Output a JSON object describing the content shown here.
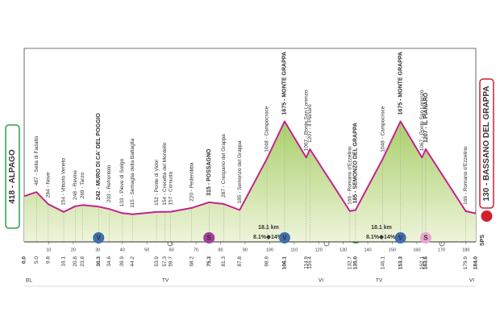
{
  "chart_data": {
    "type": "area",
    "x": [
      0,
      5,
      9.8,
      16.1,
      20.8,
      23.8,
      30.3,
      34.6,
      39.9,
      44.2,
      53.9,
      57.3,
      59.7,
      68.2,
      75.3,
      81.3,
      87.8,
      98.9,
      106.1,
      114.9,
      116.4,
      132.7,
      135,
      146.1,
      153.3,
      162.1,
      163.6,
      179.9,
      184
    ],
    "x_labels": [
      "0.0",
      "5.0",
      "9.8",
      "16.1",
      "20.8",
      "23.8",
      "30.3",
      "34.6",
      "39.9",
      "44.2",
      "53.9",
      "57.3",
      "59.7",
      "68.2",
      "75.3",
      "81.3",
      "87.8",
      "98.9",
      "106.1",
      "114.9",
      "116.4",
      "132.7",
      "135.0",
      "146.1",
      "153.3",
      "162.1",
      "163.6",
      "179.9",
      "184.0"
    ],
    "values": [
      418,
      487,
      284,
      154,
      248,
      269,
      242,
      203,
      133,
      115,
      152,
      154,
      157,
      220,
      315,
      287,
      185,
      1048,
      1675,
      1067,
      1207,
      166,
      185,
      1048,
      1675,
      1067,
      1207,
      166,
      130
    ],
    "point_labels": [
      "418 - ALPAGO",
      "487 - Sella di Fadalto",
      "284 - Nove",
      "154 - Vittorio Veneto",
      "248 - Revine",
      "269 - Tarzo",
      "242 - MURO DI CA' DEL POGGIO",
      "203 - Refrontolo",
      "133 - Pieve di Soligo",
      "115 - Semaglia della Battaglia",
      "152 - Ponte di Vidor",
      "154 - Crocetta del Montello",
      "157 - Cornuda",
      "220 - Pederobba",
      "315 - POSSAGNO",
      "287 - Crespano del Grappa",
      "185 - Semonzo del Grappa",
      "1048 - Campocroce",
      "1675 - MONTE GRAPPA",
      "1067 - Ponte San Lorenzo",
      "1207 - Il Pianaro",
      "166 - Romano d'Ezzelino",
      "185 - SEMONZO DEL GRAPPA",
      "1048 - Campocroce",
      "1675 - MONTE GRAPPA",
      "1067 - Ponte San Lorenzo",
      "1207 - IL PIANARO",
      "166 - Romano d'Ezzelino",
      "130 - BASSANO DEL GRAPPA"
    ],
    "bold_points": [
      0,
      6,
      14,
      18,
      22,
      24,
      26,
      28
    ],
    "xlim": [
      0,
      184
    ],
    "ylim": [
      -350,
      2900
    ],
    "xticks": [
      10,
      20,
      30,
      40,
      50,
      60,
      70,
      80,
      90,
      100,
      110,
      120,
      130,
      140,
      150,
      160,
      170,
      180
    ],
    "line_color": "#c2248c",
    "fill_color": "#c7df95",
    "climbs": [
      {
        "length": "18.1 km",
        "gradient": "8.1%",
        "max_gradient": "14%"
      },
      {
        "length": "18.1 km",
        "gradient": "8.1%",
        "max_gradient": "14%"
      }
    ],
    "markers": [
      {
        "x": 30.3,
        "symbol": "V",
        "color": "#3f6fae"
      },
      {
        "x": 75.3,
        "symbol": "S",
        "color": "#a13d9c"
      },
      {
        "x": 106.1,
        "symbol": "V",
        "color": "#3f6fae"
      },
      {
        "x": 153.3,
        "symbol": "V",
        "color": "#3f6fae"
      },
      {
        "x": 163.6,
        "symbol": "S",
        "color": "#e9a6cf"
      }
    ],
    "regions": [
      "BL",
      "TV",
      "VI",
      "TV",
      "VI"
    ],
    "footer_mark": "SPS"
  }
}
